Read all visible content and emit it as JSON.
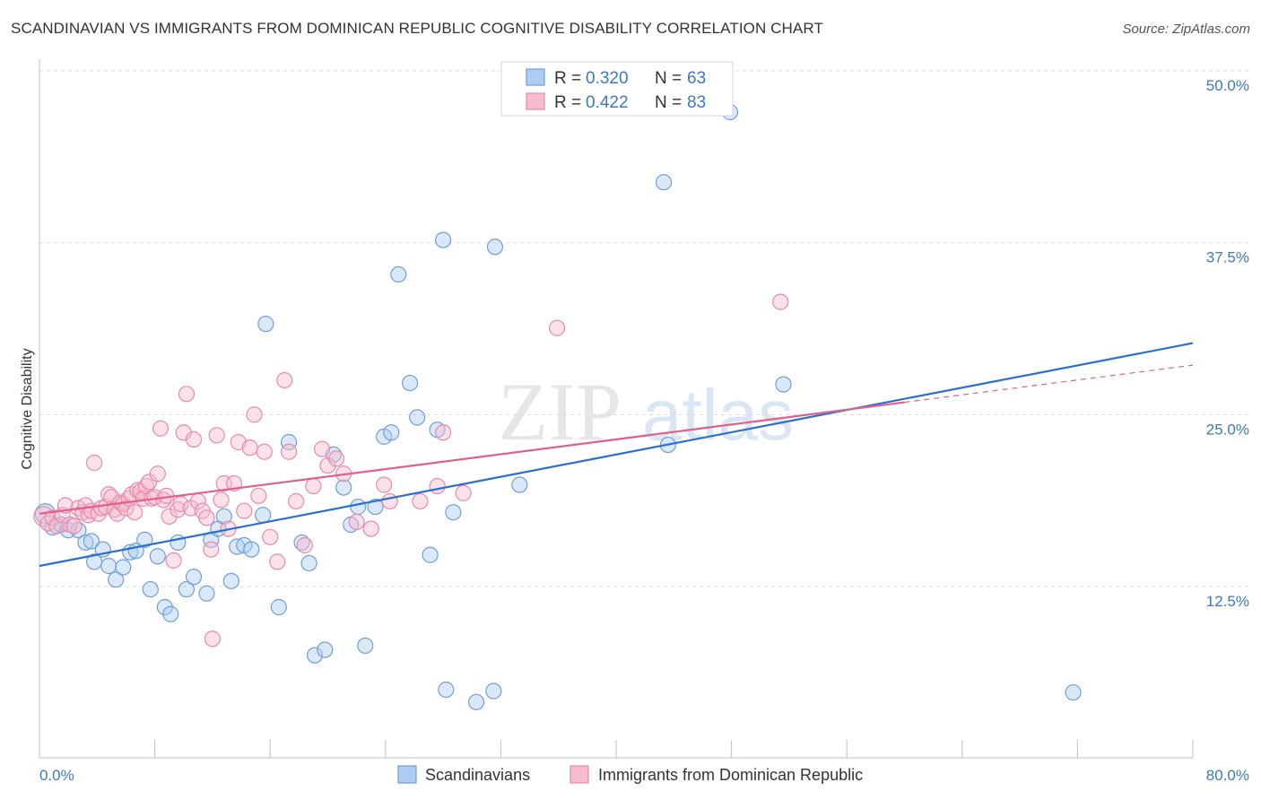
{
  "title": "SCANDINAVIAN VS IMMIGRANTS FROM DOMINICAN REPUBLIC COGNITIVE DISABILITY CORRELATION CHART",
  "source": "Source: ZipAtlas.com",
  "watermark": {
    "zip": "ZIP",
    "atlas": "atlas"
  },
  "chart_data": {
    "type": "scatter",
    "xlabel": "",
    "ylabel": "Cognitive Disability",
    "xlim": [
      0,
      80
    ],
    "ylim": [
      0,
      52
    ],
    "x_tick_labels": {
      "min": "0.0%",
      "max": "80.0%"
    },
    "y_ticks": [
      {
        "value": 12.5,
        "label": "12.5%"
      },
      {
        "value": 25.0,
        "label": "25.0%"
      },
      {
        "value": 37.5,
        "label": "37.5%"
      },
      {
        "value": 50.0,
        "label": "50.0%"
      }
    ],
    "grid": true,
    "legend_position": "top-center",
    "series": [
      {
        "name": "Scandinavians",
        "color": "#6f9fd8",
        "fill": "#aecbf0",
        "line_color": "#2a6fcf",
        "r_label": "R = ",
        "r_value": "0.320",
        "n_label": "N = ",
        "n_value": "63",
        "trend": {
          "x0": 0,
          "y0": 14.0,
          "x1": 80,
          "y1": 30.2
        },
        "points": [
          [
            0.4,
            17.8
          ],
          [
            0.9,
            16.8
          ],
          [
            1.5,
            17.0
          ],
          [
            2.0,
            16.6
          ],
          [
            2.7,
            16.6
          ],
          [
            3.2,
            15.7
          ],
          [
            3.6,
            15.8
          ],
          [
            3.8,
            14.3
          ],
          [
            4.4,
            15.2
          ],
          [
            4.8,
            14.0
          ],
          [
            5.3,
            13.0
          ],
          [
            5.8,
            13.9
          ],
          [
            6.3,
            15.0
          ],
          [
            6.7,
            15.1
          ],
          [
            7.3,
            15.9
          ],
          [
            7.7,
            12.3
          ],
          [
            8.2,
            14.7
          ],
          [
            8.7,
            11.0
          ],
          [
            9.1,
            10.5
          ],
          [
            9.6,
            15.7
          ],
          [
            10.2,
            12.3
          ],
          [
            10.7,
            13.2
          ],
          [
            11.6,
            12.0
          ],
          [
            11.9,
            15.9
          ],
          [
            12.4,
            16.7
          ],
          [
            12.8,
            17.6
          ],
          [
            13.3,
            12.9
          ],
          [
            13.7,
            15.4
          ],
          [
            14.2,
            15.5
          ],
          [
            14.7,
            15.2
          ],
          [
            15.5,
            17.7
          ],
          [
            15.7,
            31.6
          ],
          [
            16.6,
            11.0
          ],
          [
            17.3,
            23.0
          ],
          [
            18.2,
            15.7
          ],
          [
            18.7,
            14.2
          ],
          [
            19.1,
            7.5
          ],
          [
            19.8,
            7.9
          ],
          [
            20.4,
            22.1
          ],
          [
            21.1,
            19.7
          ],
          [
            21.6,
            17.0
          ],
          [
            22.1,
            18.3
          ],
          [
            22.6,
            8.2
          ],
          [
            23.3,
            18.3
          ],
          [
            23.9,
            23.4
          ],
          [
            24.4,
            23.7
          ],
          [
            24.9,
            35.2
          ],
          [
            25.7,
            27.3
          ],
          [
            26.2,
            24.8
          ],
          [
            27.1,
            14.8
          ],
          [
            27.6,
            23.9
          ],
          [
            28.0,
            37.7
          ],
          [
            28.2,
            5.0
          ],
          [
            28.7,
            17.9
          ],
          [
            30.3,
            4.1
          ],
          [
            31.5,
            4.9
          ],
          [
            31.6,
            37.2
          ],
          [
            33.3,
            19.9
          ],
          [
            43.3,
            41.9
          ],
          [
            43.6,
            22.8
          ],
          [
            47.9,
            47.0
          ],
          [
            51.6,
            27.2
          ],
          [
            71.7,
            4.8
          ]
        ]
      },
      {
        "name": "Immigrants from Dominican Republic",
        "color": "#e88aa8",
        "fill": "#f5bcd0",
        "line_color": "#e0608a",
        "r_label": "R = ",
        "r_value": "0.422",
        "n_label": "N = ",
        "n_value": "83",
        "trend": {
          "x0": 0,
          "y0": 17.8,
          "x1": 60,
          "y1": 25.9
        },
        "trend_dashed": {
          "x0": 60,
          "y0": 25.9,
          "x1": 80,
          "y1": 28.6
        },
        "points": [
          [
            0.3,
            17.6
          ],
          [
            0.6,
            17.1
          ],
          [
            0.9,
            17.5
          ],
          [
            1.2,
            16.9
          ],
          [
            1.6,
            17.7
          ],
          [
            1.8,
            18.4
          ],
          [
            2.1,
            17.0
          ],
          [
            2.4,
            16.9
          ],
          [
            2.7,
            18.2
          ],
          [
            3.0,
            17.9
          ],
          [
            3.2,
            18.4
          ],
          [
            3.4,
            17.7
          ],
          [
            3.6,
            18.0
          ],
          [
            3.8,
            21.5
          ],
          [
            4.1,
            17.8
          ],
          [
            4.3,
            18.2
          ],
          [
            4.6,
            18.3
          ],
          [
            4.8,
            19.2
          ],
          [
            5.0,
            19.0
          ],
          [
            5.2,
            18.1
          ],
          [
            5.4,
            17.8
          ],
          [
            5.6,
            18.6
          ],
          [
            5.8,
            18.5
          ],
          [
            6.0,
            18.2
          ],
          [
            6.2,
            18.9
          ],
          [
            6.4,
            19.2
          ],
          [
            6.6,
            17.9
          ],
          [
            6.8,
            19.5
          ],
          [
            7.0,
            19.4
          ],
          [
            7.2,
            18.9
          ],
          [
            7.4,
            19.8
          ],
          [
            7.6,
            20.1
          ],
          [
            7.8,
            18.9
          ],
          [
            8.0,
            19.0
          ],
          [
            8.2,
            20.7
          ],
          [
            8.4,
            24.0
          ],
          [
            8.6,
            18.8
          ],
          [
            8.8,
            19.1
          ],
          [
            9.0,
            17.6
          ],
          [
            9.3,
            14.4
          ],
          [
            9.6,
            18.1
          ],
          [
            9.8,
            18.5
          ],
          [
            10.0,
            23.7
          ],
          [
            10.2,
            26.5
          ],
          [
            10.5,
            18.2
          ],
          [
            10.7,
            23.2
          ],
          [
            11.0,
            18.7
          ],
          [
            11.3,
            18.0
          ],
          [
            11.6,
            17.5
          ],
          [
            11.9,
            15.2
          ],
          [
            12.0,
            8.7
          ],
          [
            12.3,
            23.5
          ],
          [
            12.6,
            18.8
          ],
          [
            12.8,
            20.0
          ],
          [
            13.1,
            16.7
          ],
          [
            13.5,
            20.0
          ],
          [
            13.8,
            23.0
          ],
          [
            14.2,
            18.0
          ],
          [
            14.6,
            22.6
          ],
          [
            14.9,
            25.0
          ],
          [
            15.2,
            19.1
          ],
          [
            15.6,
            22.3
          ],
          [
            16.0,
            16.1
          ],
          [
            16.5,
            14.3
          ],
          [
            17.0,
            27.5
          ],
          [
            17.3,
            22.3
          ],
          [
            17.8,
            18.7
          ],
          [
            18.4,
            15.5
          ],
          [
            19.0,
            19.8
          ],
          [
            19.6,
            22.5
          ],
          [
            20.0,
            21.3
          ],
          [
            20.6,
            21.8
          ],
          [
            21.1,
            20.7
          ],
          [
            22.0,
            17.2
          ],
          [
            23.0,
            16.7
          ],
          [
            23.9,
            19.9
          ],
          [
            24.3,
            18.7
          ],
          [
            26.4,
            18.7
          ],
          [
            27.6,
            19.8
          ],
          [
            28.0,
            23.7
          ],
          [
            29.4,
            19.3
          ],
          [
            35.9,
            31.3
          ],
          [
            51.4,
            33.2
          ]
        ]
      }
    ]
  },
  "bottom_legend": [
    "Scandinavians",
    "Immigrants from Dominican Republic"
  ]
}
